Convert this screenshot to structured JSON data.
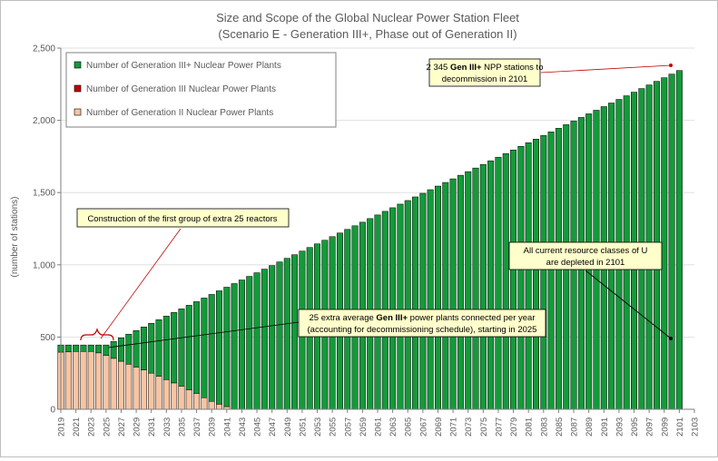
{
  "chart_data": {
    "type": "bar",
    "stacked": true,
    "title": "Size and Scope of the Global Nuclear Power Station Fleet",
    "subtitle": "(Scenario E - Generation III+, Phase out of Generation II)",
    "ylabel": "(number of stations)",
    "xlabel": "",
    "ylim": [
      0,
      2500
    ],
    "yticks": [
      0,
      500,
      1000,
      1500,
      2000,
      2500
    ],
    "ytick_labels": [
      "0",
      "500",
      "1,000",
      "1,500",
      "2,000",
      "2,500"
    ],
    "xticks": [
      2019,
      2021,
      2023,
      2025,
      2027,
      2029,
      2031,
      2033,
      2035,
      2037,
      2039,
      2041,
      2043,
      2045,
      2047,
      2049,
      2051,
      2053,
      2055,
      2057,
      2059,
      2061,
      2063,
      2065,
      2067,
      2069,
      2071,
      2073,
      2075,
      2077,
      2079,
      2081,
      2083,
      2085,
      2087,
      2089,
      2091,
      2093,
      2095,
      2097,
      2099,
      2101,
      2103
    ],
    "x_start": 2019,
    "x_end": 2101,
    "grid": "horizontal",
    "legend_position": "top-left",
    "series": [
      {
        "name": "Number of Generation III+ Nuclear Power Plants",
        "color": "#149a3a"
      },
      {
        "name": "Number of Generation III Nuclear Power Plants",
        "color": "#c00000"
      },
      {
        "name": "Number of Generation II Nuclear Power Plants",
        "color": "#f8c4a2"
      }
    ],
    "totals": [
      445,
      445,
      445,
      445,
      445,
      445,
      445,
      470,
      495,
      520,
      545,
      570,
      595,
      620,
      645,
      670,
      695,
      720,
      745,
      770,
      795,
      820,
      845,
      870,
      895,
      920,
      945,
      970,
      995,
      1020,
      1045,
      1070,
      1095,
      1120,
      1145,
      1170,
      1195,
      1220,
      1245,
      1270,
      1295,
      1320,
      1345,
      1370,
      1395,
      1420,
      1445,
      1470,
      1495,
      1520,
      1545,
      1570,
      1595,
      1620,
      1645,
      1670,
      1695,
      1720,
      1745,
      1770,
      1795,
      1820,
      1845,
      1870,
      1895,
      1920,
      1945,
      1970,
      1995,
      2020,
      2045,
      2070,
      2095,
      2120,
      2145,
      2170,
      2195,
      2220,
      2245,
      2270,
      2295,
      2320,
      2345
    ],
    "gen2": [
      395,
      397,
      400,
      400,
      400,
      390,
      372,
      352,
      332,
      312,
      292,
      272,
      250,
      228,
      205,
      182,
      160,
      135,
      110,
      80,
      55,
      35,
      18,
      0,
      0,
      0,
      0,
      0,
      0,
      0,
      0,
      0,
      0,
      0,
      0,
      0,
      0,
      0,
      0,
      0,
      0,
      0,
      0,
      0,
      0,
      0,
      0,
      0,
      0,
      0,
      0,
      0,
      0,
      0,
      0,
      0,
      0,
      0,
      0,
      0,
      0,
      0,
      0,
      0,
      0,
      0,
      0,
      0,
      0,
      0,
      0,
      0,
      0,
      0,
      0,
      0,
      0,
      0,
      0,
      0,
      0,
      0,
      0
    ],
    "annotations": {
      "construction": "Construction of the first group of extra 25 reactors",
      "decommission_pre": "2 345 ",
      "decommission_bold": "Gen III+",
      "decommission_post": " NPP stations to",
      "decommission_line2": "decommission in 2101",
      "depleted_line1": "All current resource classes of U",
      "depleted_line2": "are depleted in 2101",
      "extra_pre": "25 extra average ",
      "extra_bold": "Gen III+",
      "extra_post": " power plants connected per year",
      "extra_line2": "(accounting for decommissioning schedule), starting in 2025"
    },
    "colors": {
      "gen3plus": "#149a3a",
      "gen3": "#c00000",
      "gen2": "#f8c4a2",
      "annotation_bg": "#ffffcc",
      "grid": "#d9d9d9"
    }
  }
}
